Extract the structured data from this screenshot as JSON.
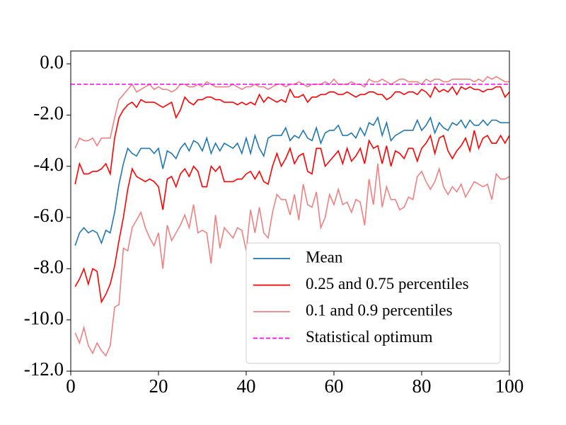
{
  "chart_data": {
    "type": "line",
    "x": [
      1,
      2,
      3,
      4,
      5,
      6,
      7,
      8,
      9,
      10,
      11,
      12,
      13,
      14,
      15,
      16,
      17,
      18,
      19,
      20,
      21,
      22,
      23,
      24,
      25,
      26,
      27,
      28,
      29,
      30,
      31,
      32,
      33,
      34,
      35,
      36,
      37,
      38,
      39,
      40,
      41,
      42,
      43,
      44,
      45,
      46,
      47,
      48,
      49,
      50,
      51,
      52,
      53,
      54,
      55,
      56,
      57,
      58,
      59,
      60,
      61,
      62,
      63,
      64,
      65,
      66,
      67,
      68,
      69,
      70,
      71,
      72,
      73,
      74,
      75,
      76,
      77,
      78,
      79,
      80,
      81,
      82,
      83,
      84,
      85,
      86,
      87,
      88,
      89,
      90,
      91,
      92,
      93,
      94,
      95,
      96,
      97,
      98,
      99,
      100
    ],
    "series": [
      {
        "name": "Mean",
        "color": "#1f77b4",
        "values": [
          -7.1,
          -6.6,
          -6.4,
          -6.6,
          -6.5,
          -6.6,
          -7.0,
          -6.5,
          -6.6,
          -5.8,
          -4.7,
          -3.9,
          -3.3,
          -3.5,
          -3.6,
          -3.3,
          -3.3,
          -3.3,
          -3.5,
          -3.3,
          -4.1,
          -3.4,
          -3.5,
          -3.7,
          -3.3,
          -3.1,
          -3.4,
          -3.0,
          -3.1,
          -3.4,
          -2.9,
          -3.5,
          -3.1,
          -3.4,
          -3.1,
          -3.2,
          -3.3,
          -3.1,
          -3.5,
          -2.9,
          -3.5,
          -2.8,
          -3.3,
          -3.6,
          -2.9,
          -2.8,
          -2.8,
          -2.8,
          -2.5,
          -3.0,
          -2.8,
          -2.9,
          -2.6,
          -2.9,
          -3.0,
          -2.5,
          -3.1,
          -2.7,
          -2.6,
          -2.6,
          -2.4,
          -2.8,
          -2.8,
          -2.7,
          -2.9,
          -2.5,
          -2.8,
          -2.3,
          -2.4,
          -2.1,
          -2.8,
          -2.3,
          -3.0,
          -2.8,
          -2.7,
          -2.6,
          -2.6,
          -2.6,
          -2.2,
          -2.6,
          -2.4,
          -2.1,
          -2.7,
          -2.3,
          -2.5,
          -2.6,
          -2.3,
          -2.4,
          -2.2,
          -2.5,
          -2.2,
          -2.4,
          -2.4,
          -2.2,
          -2.4,
          -2.2,
          -2.2,
          -2.3,
          -2.3,
          -2.3
        ]
      },
      {
        "name": "0.25 and 0.75 percentiles",
        "color": "#ff0000",
        "lower": [
          -8.7,
          -8.4,
          -8.0,
          -8.6,
          -8.0,
          -8.1,
          -9.3,
          -9.0,
          -8.6,
          -7.9,
          -6.9,
          -6.0,
          -4.9,
          -4.1,
          -4.4,
          -4.5,
          -4.6,
          -4.5,
          -4.6,
          -4.8,
          -5.7,
          -4.5,
          -4.4,
          -4.8,
          -4.3,
          -4.1,
          -4.4,
          -4.0,
          -4.2,
          -4.8,
          -4.8,
          -4.0,
          -4.2,
          -4.0,
          -4.6,
          -4.6,
          -4.6,
          -4.5,
          -4.5,
          -4.3,
          -4.2,
          -4.5,
          -4.2,
          -4.6,
          -4.7,
          -4.0,
          -3.5,
          -4.0,
          -3.7,
          -3.3,
          -3.9,
          -3.6,
          -3.5,
          -4.2,
          -4.3,
          -3.3,
          -3.3,
          -4.0,
          -3.8,
          -3.6,
          -3.4,
          -3.9,
          -3.3,
          -3.8,
          -3.6,
          -3.3,
          -3.9,
          -3.0,
          -3.3,
          -3.2,
          -3.9,
          -3.2,
          -4.0,
          -3.4,
          -3.5,
          -3.7,
          -3.3,
          -3.3,
          -3.8,
          -3.3,
          -3.1,
          -2.8,
          -3.5,
          -2.9,
          -2.8,
          -3.4,
          -3.7,
          -3.4,
          -3.2,
          -2.9,
          -3.4,
          -2.6,
          -3.3,
          -2.9,
          -2.8,
          -3.1,
          -3.1,
          -2.8,
          -3.1,
          -2.8
        ],
        "upper": [
          -4.7,
          -3.9,
          -4.3,
          -4.3,
          -4.2,
          -4.2,
          -4.1,
          -3.9,
          -4.3,
          -2.9,
          -2.1,
          -1.8,
          -1.6,
          -1.5,
          -1.7,
          -1.4,
          -1.5,
          -1.5,
          -1.5,
          -1.6,
          -1.7,
          -1.6,
          -1.5,
          -2.1,
          -1.8,
          -1.3,
          -1.5,
          -1.6,
          -1.4,
          -1.4,
          -1.3,
          -1.3,
          -1.4,
          -1.4,
          -1.5,
          -1.5,
          -1.5,
          -1.6,
          -1.5,
          -1.6,
          -1.5,
          -1.6,
          -1.2,
          -1.5,
          -1.3,
          -1.4,
          -1.5,
          -1.4,
          -1.5,
          -1.0,
          -1.3,
          -1.3,
          -1.2,
          -1.5,
          -1.3,
          -1.3,
          -1.2,
          -1.2,
          -1.1,
          -1.1,
          -1.2,
          -1.2,
          -1.1,
          -1.2,
          -1.3,
          -1.2,
          -1.2,
          -1.1,
          -1.1,
          -1.2,
          -1.2,
          -1.4,
          -1.3,
          -1.1,
          -1.1,
          -1.2,
          -1.1,
          -1.1,
          -1.2,
          -1.0,
          -1.1,
          -1.3,
          -0.9,
          -1.1,
          -1.0,
          -1.1,
          -0.9,
          -1.2,
          -0.9,
          -1.0,
          -0.9,
          -1.0,
          -1.0,
          -1.1,
          -1.0,
          -1.0,
          -0.9,
          -0.9,
          -1.3,
          -1.1
        ]
      },
      {
        "name": "0.1 and 0.9 percentiles",
        "color": "#f08080",
        "lower": [
          -10.5,
          -10.9,
          -10.3,
          -11.0,
          -11.3,
          -10.9,
          -11.2,
          -11.4,
          -11.0,
          -9.5,
          -9.4,
          -7.2,
          -7.3,
          -6.4,
          -6.1,
          -5.8,
          -6.4,
          -6.8,
          -7.1,
          -6.6,
          -8.0,
          -6.3,
          -6.9,
          -6.6,
          -6.3,
          -5.9,
          -6.4,
          -5.5,
          -6.6,
          -6.5,
          -6.6,
          -7.8,
          -5.9,
          -7.2,
          -6.4,
          -6.6,
          -6.8,
          -6.4,
          -6.5,
          -7.3,
          -5.7,
          -6.6,
          -5.6,
          -6.6,
          -6.8,
          -5.8,
          -5.1,
          -5.3,
          -5.3,
          -5.9,
          -5.1,
          -6.1,
          -4.7,
          -5.5,
          -5.6,
          -5.0,
          -6.4,
          -6.0,
          -5.1,
          -5.5,
          -4.9,
          -5.5,
          -5.4,
          -5.8,
          -5.3,
          -5.4,
          -6.3,
          -4.5,
          -5.5,
          -3.9,
          -5.6,
          -4.8,
          -5.3,
          -5.3,
          -5.7,
          -5.6,
          -5.2,
          -5.3,
          -4.4,
          -4.2,
          -4.6,
          -4.9,
          -4.6,
          -4.1,
          -4.8,
          -5.1,
          -4.8,
          -5.0,
          -4.7,
          -5.2,
          -4.9,
          -4.6,
          -4.7,
          -4.8,
          -4.7,
          -5.3,
          -4.3,
          -4.5,
          -4.5,
          -4.4
        ],
        "upper": [
          -3.3,
          -2.9,
          -3.0,
          -3.0,
          -2.9,
          -3.2,
          -2.9,
          -2.9,
          -2.9,
          -2.1,
          -1.4,
          -1.2,
          -1.0,
          -0.8,
          -1.1,
          -1.0,
          -0.9,
          -0.8,
          -1.0,
          -0.9,
          -1.0,
          -1.0,
          -1.1,
          -1.0,
          -0.8,
          -0.8,
          -0.9,
          -0.9,
          -0.8,
          -0.9,
          -0.7,
          -0.8,
          -0.9,
          -0.9,
          -0.9,
          -0.9,
          -0.8,
          -0.9,
          -1.0,
          -0.9,
          -0.9,
          -0.8,
          -0.9,
          -0.9,
          -1.0,
          -0.9,
          -0.8,
          -0.8,
          -0.9,
          -0.8,
          -0.8,
          -0.7,
          -0.8,
          -0.9,
          -0.8,
          -0.8,
          -0.8,
          -0.7,
          -0.8,
          -0.6,
          -0.8,
          -0.8,
          -0.8,
          -0.7,
          -0.8,
          -0.8,
          -0.9,
          -0.6,
          -0.7,
          -0.7,
          -0.6,
          -0.7,
          -0.8,
          -0.7,
          -0.6,
          -0.6,
          -0.7,
          -0.7,
          -0.7,
          -0.8,
          -0.6,
          -0.7,
          -0.6,
          -0.6,
          -0.7,
          -0.7,
          -0.6,
          -0.6,
          -0.6,
          -0.6,
          -0.6,
          -0.7,
          -0.6,
          -0.7,
          -0.5,
          -0.6,
          -0.5,
          -0.6,
          -0.7,
          -0.7
        ]
      },
      {
        "name": "Statistical optimum",
        "color": "#ff00ff",
        "dashed": true,
        "value": -0.8
      }
    ],
    "xlim": [
      0,
      100
    ],
    "xticks": [
      0,
      20,
      40,
      60,
      80,
      100
    ],
    "ylim": [
      -12,
      0.5
    ],
    "yticks": [
      {
        "value": -12,
        "label": "-12.0"
      },
      {
        "value": -10,
        "label": "-10.0"
      },
      {
        "value": -8,
        "label": "-8.0"
      },
      {
        "value": -6,
        "label": "-6.0"
      },
      {
        "value": -4,
        "label": "-4.0"
      },
      {
        "value": -2,
        "label": "-2.0"
      },
      {
        "value": 0,
        "label": "0.0"
      }
    ],
    "legend": "lower right"
  }
}
